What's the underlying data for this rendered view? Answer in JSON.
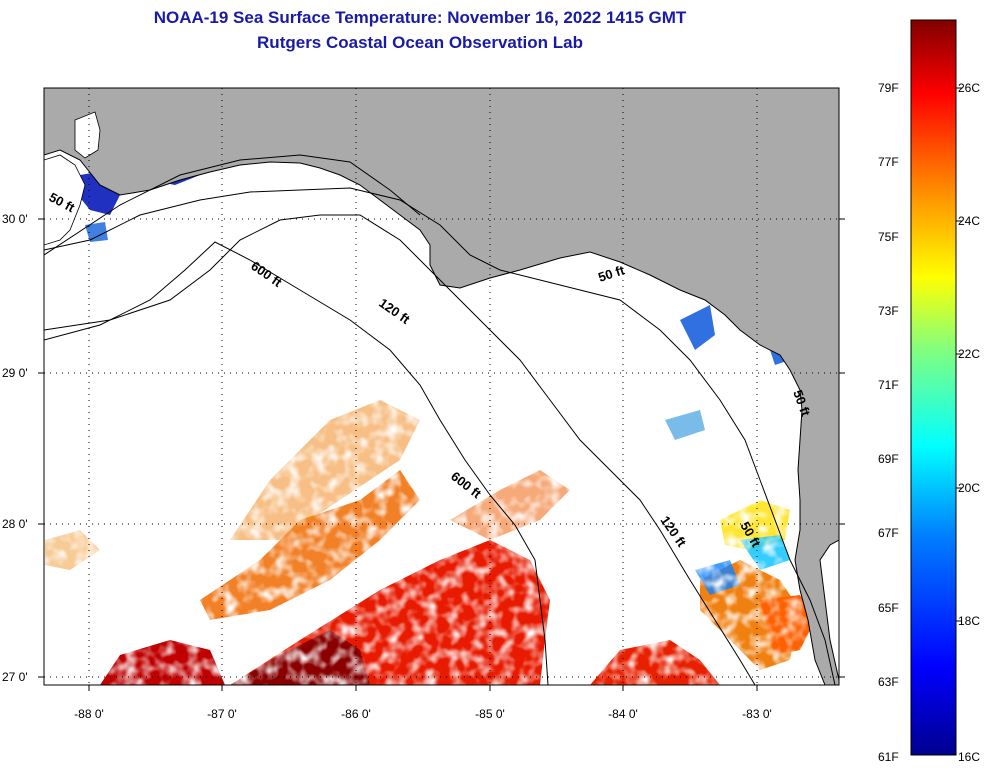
{
  "header": {
    "title": "NOAA-19 Sea Surface Temperature:  November 16, 2022 1415 GMT",
    "subtitle": "Rutgers Coastal Ocean Observation Lab"
  },
  "map": {
    "lat_ticks": [
      {
        "lat": 30,
        "label": "30 0'"
      },
      {
        "lat": 29,
        "label": "29 0'"
      },
      {
        "lat": 28,
        "label": "28 0'"
      },
      {
        "lat": 27,
        "label": "27 0'"
      }
    ],
    "lon_ticks": [
      {
        "lon": -88,
        "label": "-88 0'"
      },
      {
        "lon": -87,
        "label": "-87 0'"
      },
      {
        "lon": -86,
        "label": "-86 0'"
      },
      {
        "lon": -85,
        "label": "-85 0'"
      },
      {
        "lon": -84,
        "label": "-84 0'"
      },
      {
        "lon": -83,
        "label": "-83 0'"
      }
    ],
    "depth_labels": [
      {
        "text": "50 ft"
      },
      {
        "text": "600 ft"
      },
      {
        "text": "120 ft"
      },
      {
        "text": "50 ft"
      },
      {
        "text": "600 ft"
      },
      {
        "text": "120 ft"
      },
      {
        "text": "50 ft"
      },
      {
        "text": "50 ft"
      }
    ],
    "colors": {
      "land": "#aaaaaa",
      "ocean": "#ffffff",
      "contour": "#000000"
    }
  },
  "colorbar": {
    "fahrenheit": [
      "79F",
      "77F",
      "75F",
      "73F",
      "71F",
      "69F",
      "67F",
      "65F",
      "63F",
      "61F"
    ],
    "celsius": [
      "26C",
      "24C",
      "22C",
      "20C",
      "18C",
      "16C"
    ],
    "gradient": [
      "#00008f",
      "#0000ff",
      "#0080ff",
      "#00ffff",
      "#80ff80",
      "#ffff00",
      "#ff8000",
      "#ff0000",
      "#800000"
    ]
  }
}
